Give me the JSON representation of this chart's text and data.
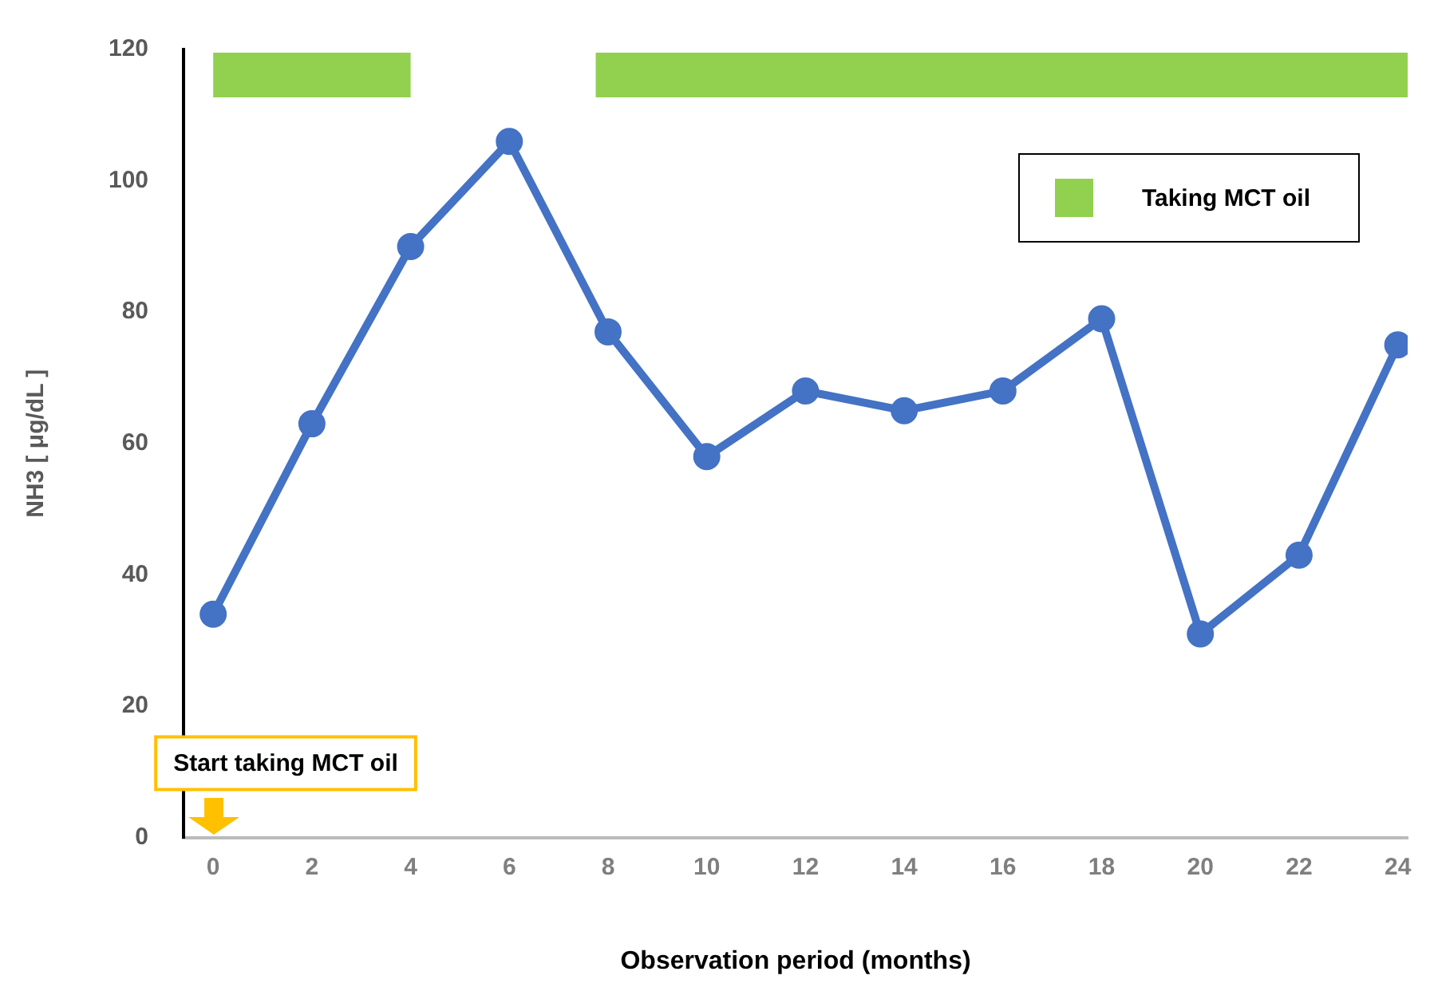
{
  "chart_data": {
    "type": "line",
    "xlabel": "Observation period (months)",
    "ylabel": "NH3 [ μg/dL ]",
    "x": [
      0,
      2,
      4,
      6,
      8,
      10,
      12,
      14,
      16,
      18,
      20,
      22,
      24
    ],
    "series": [
      {
        "color": "#4472c4",
        "values": [
          34,
          63,
          90,
          106,
          77,
          58,
          68,
          65,
          68,
          79,
          31,
          43,
          75
        ]
      }
    ],
    "xlim": [
      -0.6,
      24.2
    ],
    "xticks": [
      0,
      2,
      4,
      6,
      8,
      10,
      12,
      14,
      16,
      18,
      20,
      22,
      24
    ],
    "ylim": [
      0,
      120
    ],
    "yticks": [
      0,
      20,
      40,
      60,
      80,
      100,
      120
    ],
    "bands": [
      {
        "axis": "x",
        "from": 0,
        "to": 4,
        "label": "Taking MCT oil",
        "color": "#92d050"
      },
      {
        "axis": "x",
        "from": 7.75,
        "to": 24.2,
        "color": "#92d050"
      }
    ],
    "annotations": [
      "Start taking MCT oil"
    ],
    "marker": "circle",
    "line_style": "solid",
    "grid": false,
    "legend": "top right"
  }
}
